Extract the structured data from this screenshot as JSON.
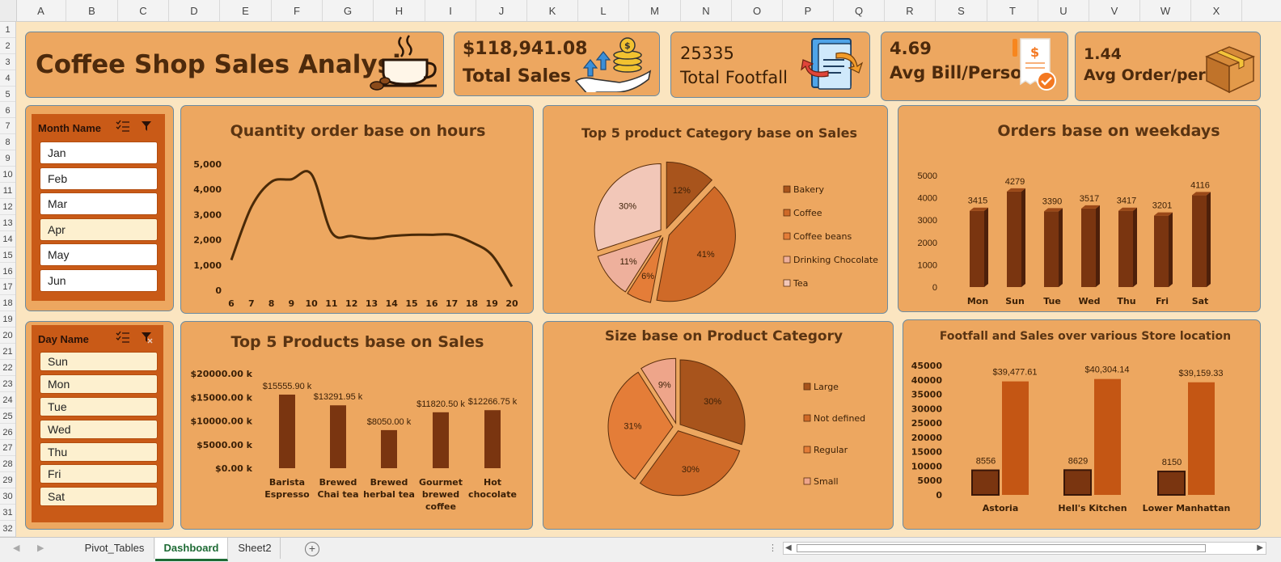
{
  "columns": [
    "A",
    "B",
    "C",
    "D",
    "E",
    "F",
    "G",
    "H",
    "I",
    "J",
    "K",
    "L",
    "M",
    "N",
    "O",
    "P",
    "Q",
    "R",
    "S",
    "T",
    "U",
    "V",
    "W",
    "X"
  ],
  "rows": [
    "1",
    "2",
    "3",
    "4",
    "5",
    "6",
    "7",
    "8",
    "9",
    "10",
    "11",
    "12",
    "13",
    "14",
    "15",
    "16",
    "17",
    "18",
    "19",
    "20",
    "21",
    "22",
    "23",
    "24",
    "25",
    "26",
    "27",
    "28",
    "29",
    "30",
    "31",
    "32"
  ],
  "header": {
    "title": "Coffee Shop Sales Analysis"
  },
  "kpis": {
    "sales": {
      "value": "$118,941.08",
      "label": "Total Sales"
    },
    "footfall": {
      "value": "25335",
      "label": "Total Footfall"
    },
    "bill": {
      "value": "4.69",
      "label": "Avg Bill/Person"
    },
    "order": {
      "value": "1.44",
      "label": "Avg Order/person"
    }
  },
  "slicers": {
    "month": {
      "title": "Month Name",
      "items": [
        "Jan",
        "Feb",
        "Mar",
        "Apr",
        "May",
        "Jun"
      ]
    },
    "day": {
      "title": "Day Name",
      "items": [
        "Sun",
        "Mon",
        "Tue",
        "Wed",
        "Thu",
        "Fri",
        "Sat"
      ]
    }
  },
  "chart_titles": {
    "hours": "Quantity order base on hours",
    "category": "Top 5 product Category base on Sales",
    "weekdays": "Orders base on weekdays",
    "products": "Top 5 Products base on Sales",
    "size": "Size base on Product Category",
    "store": "Footfall and Sales over various Store location"
  },
  "chart_data": [
    {
      "id": "hours",
      "type": "line",
      "title": "Quantity order base on hours",
      "x": [
        6,
        7,
        8,
        9,
        10,
        11,
        12,
        13,
        14,
        15,
        16,
        17,
        18,
        19,
        20
      ],
      "values": [
        1200,
        3300,
        4300,
        4400,
        4600,
        2300,
        2150,
        2050,
        2150,
        2200,
        2200,
        2200,
        1900,
        1400,
        150
      ],
      "ylim": [
        0,
        5000
      ],
      "yticks": [
        "5,000",
        "4,000",
        "3,000",
        "2,000",
        "1,000",
        "0"
      ]
    },
    {
      "id": "category",
      "type": "pie",
      "title": "Top 5 product Category base on Sales",
      "labels": [
        "Bakery",
        "Coffee",
        "Coffee beans",
        "Drinking Chocolate",
        "Tea"
      ],
      "values": [
        12,
        41,
        6,
        11,
        30
      ],
      "colors": [
        "#a8541c",
        "#cf6a28",
        "#e47d38",
        "#eeb09c",
        "#f2c7b8"
      ]
    },
    {
      "id": "weekdays",
      "type": "bar",
      "title": "Orders base on weekdays",
      "categories": [
        "Mon",
        "Sun",
        "Tue",
        "Wed",
        "Thu",
        "Fri",
        "Sat"
      ],
      "values": [
        3415,
        4279,
        3390,
        3517,
        3417,
        3201,
        4116
      ],
      "ylim": [
        0,
        5000
      ],
      "yticks": [
        "5000",
        "4000",
        "3000",
        "2000",
        "1000",
        "0"
      ]
    },
    {
      "id": "products",
      "type": "bar",
      "title": "Top 5 Products base on Sales",
      "categories": [
        [
          "Barista",
          "Espresso"
        ],
        [
          "Brewed",
          "Chai tea"
        ],
        [
          "Brewed",
          "herbal tea"
        ],
        [
          "Gourmet",
          "brewed",
          "coffee"
        ],
        [
          "Hot",
          "chocolate"
        ]
      ],
      "values": [
        15555.9,
        13291.95,
        8050,
        11820.5,
        12266.75
      ],
      "value_labels": [
        "$15555.90 k",
        "$13291.95 k",
        "$8050.00 k",
        "$11820.50 k",
        "$12266.75 k"
      ],
      "ylim": [
        0,
        20000
      ],
      "yticks": [
        "$20000.00 k",
        "$15000.00 k",
        "$10000.00 k",
        "$5000.00 k",
        "$0.00 k"
      ]
    },
    {
      "id": "size",
      "type": "pie",
      "title": "Size base on Product Category",
      "labels": [
        "Large",
        "Not defined",
        "Regular",
        "Small"
      ],
      "values": [
        30,
        30,
        31,
        9
      ],
      "colors": [
        "#a8541c",
        "#cf6a28",
        "#e47d38",
        "#eea58a"
      ]
    },
    {
      "id": "store",
      "type": "bar",
      "title": "Footfall and Sales over various Store location",
      "categories": [
        "Astoria",
        "Hell's Kitchen",
        "Lower Manhattan"
      ],
      "series": [
        {
          "name": "Footfall",
          "values": [
            8556,
            8629,
            8150
          ],
          "labels": [
            "8556",
            "8629",
            "8150"
          ]
        },
        {
          "name": "Sales",
          "values": [
            39477.61,
            40304.14,
            39159.33
          ],
          "labels": [
            "$39,477.61",
            "$40,304.14",
            "$39,159.33"
          ]
        }
      ],
      "ylim": [
        0,
        45000
      ],
      "yticks": [
        "45000",
        "40000",
        "35000",
        "30000",
        "25000",
        "20000",
        "15000",
        "10000",
        "5000",
        "0"
      ]
    }
  ],
  "tabs": [
    "Pivot_Tables",
    "Dashboard",
    "Sheet2"
  ]
}
